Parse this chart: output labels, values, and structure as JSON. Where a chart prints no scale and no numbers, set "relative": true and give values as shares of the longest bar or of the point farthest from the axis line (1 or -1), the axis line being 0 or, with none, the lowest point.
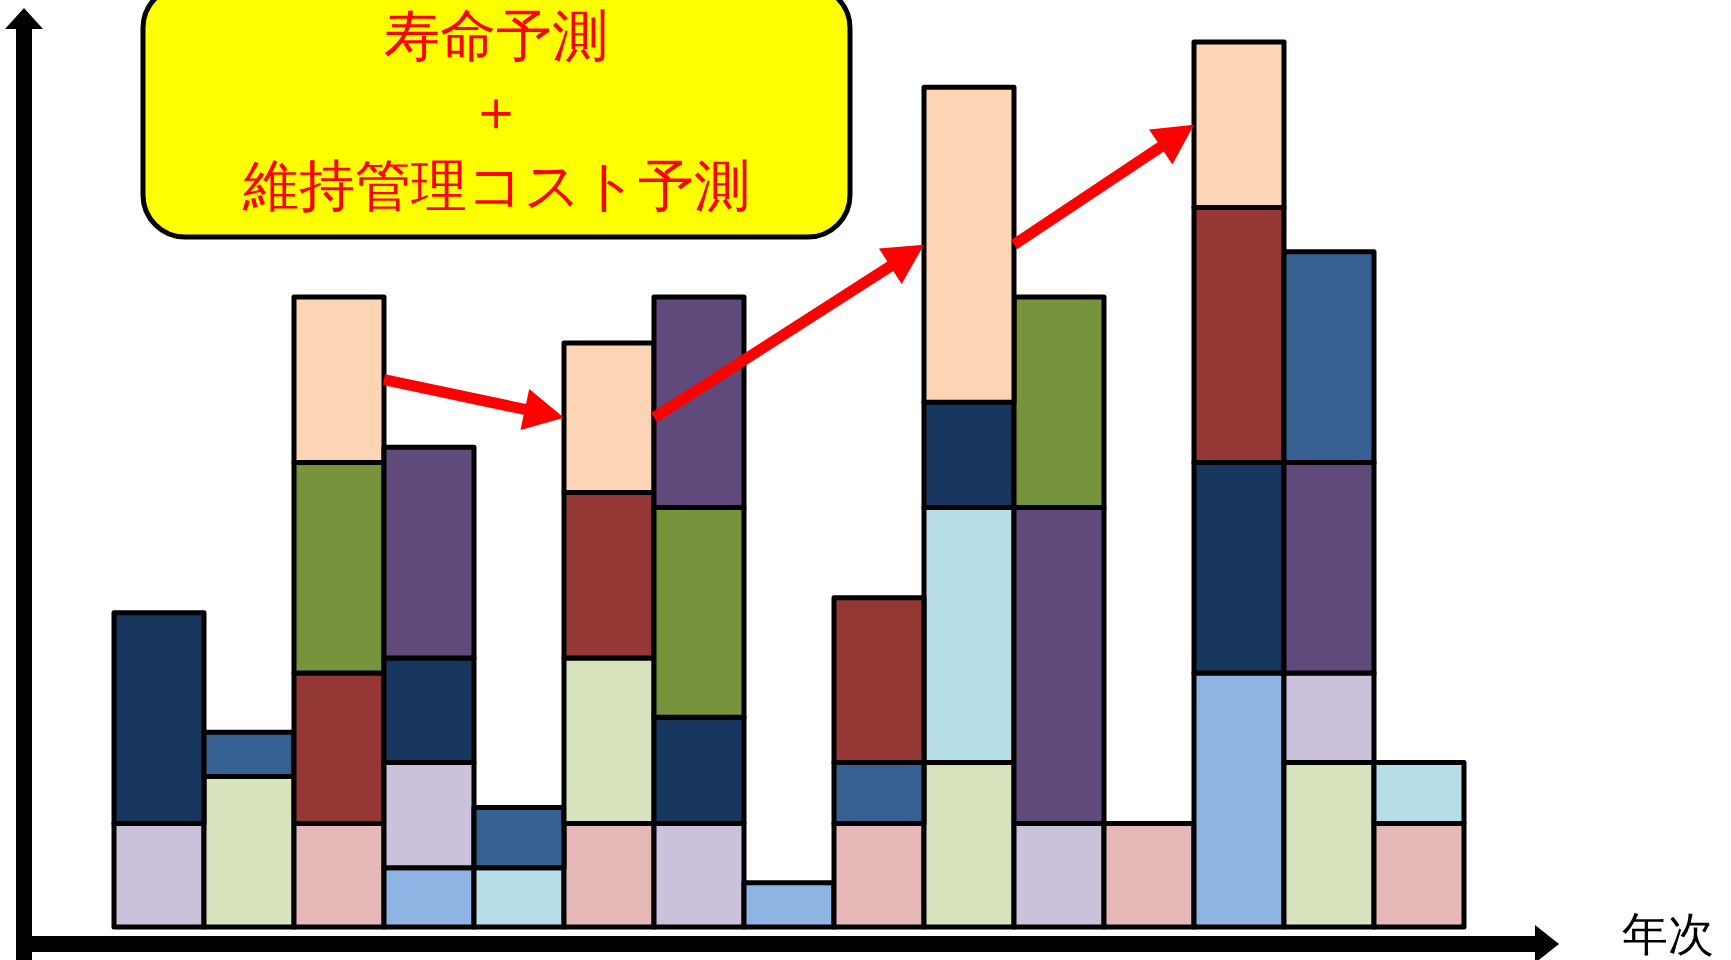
{
  "chart_data": {
    "type": "bar",
    "title": "寿命予測＋維持管理コスト予測",
    "xlabel": "年次",
    "stacked": true,
    "relative": true,
    "categories": [
      null,
      null,
      null,
      null,
      null,
      null,
      null,
      null,
      null,
      null,
      null,
      null,
      null,
      null,
      null
    ],
    "series": [
      {
        "values": [
          0.117,
          0.17,
          0.117,
          0.067,
          0.067,
          0.117,
          0.117,
          0.05,
          0.117,
          0.186,
          0.117,
          0.117,
          0.287,
          0.186,
          0.117
        ],
        "colors": [
          "#ccc1da",
          "#d7e4bd",
          "#e6b9b8",
          "#8eb4e3",
          "#b7dee8",
          "#e6b9b8",
          "#ccc1da",
          "#8eb4e3",
          "#e6b9b8",
          "#d7e4bd",
          "#ccc1da",
          "#e6b9b8",
          "#8eb4e3",
          "#d7e4bd",
          "#e6b9b8"
        ]
      },
      {
        "values": [
          0.238,
          0.05,
          0.17,
          0.119,
          0.068,
          0.187,
          0.12,
          null,
          0.069,
          0.288,
          0.357,
          null,
          0.238,
          0.101,
          0.069
        ],
        "colors": [
          "#17375e",
          "#376092",
          "#953735",
          "#ccc1da",
          "#376092",
          "#d7e4bd",
          "#17375e",
          null,
          "#376092",
          "#b7dee8",
          "#604a7b",
          null,
          "#17375e",
          "#ccc1da",
          "#b7dee8"
        ]
      },
      {
        "values": [
          null,
          null,
          0.238,
          0.118,
          null,
          0.187,
          0.237,
          null,
          0.186,
          0.119,
          0.238,
          null,
          0.288,
          0.238,
          null
        ],
        "colors": [
          null,
          null,
          "#77933c",
          "#17375e",
          null,
          "#953735",
          "#77933c",
          null,
          "#953735",
          "#17375e",
          "#77933c",
          null,
          "#953735",
          "#604a7b",
          null
        ]
      },
      {
        "values": [
          null,
          null,
          0.187,
          0.238,
          null,
          0.169,
          0.238,
          null,
          null,
          0.356,
          null,
          null,
          0.187,
          0.238,
          null
        ],
        "colors": [
          null,
          null,
          "#fcd5b5",
          "#604a7b",
          null,
          "#fcd5b5",
          "#604a7b",
          null,
          null,
          "#fcd5b5",
          null,
          null,
          "#fcd5b5",
          "#376092",
          null
        ]
      }
    ]
  }
}
